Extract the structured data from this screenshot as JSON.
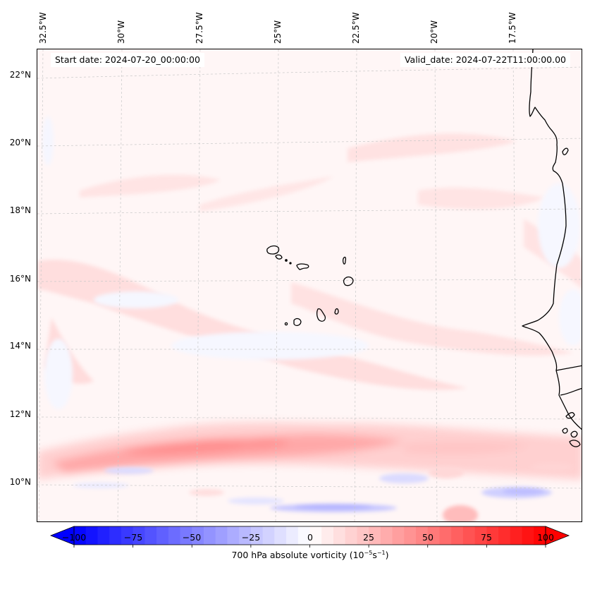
{
  "figure": {
    "start_date": "Start date: 2024-07-20_00:00:00",
    "valid_date": "Valid_date: 2024-07-22T11:00:00.00",
    "lon_labels": [
      "32.5°W",
      "30°W",
      "27.5°W",
      "25°W",
      "22.5°W",
      "20°W",
      "17.5°W"
    ],
    "lat_labels": [
      "22°N",
      "20°N",
      "18°N",
      "16°N",
      "14°N",
      "12°N",
      "10°N"
    ],
    "colorbar": {
      "ticks": [
        "−100",
        "−75",
        "−50",
        "−25",
        "0",
        "25",
        "50",
        "75",
        "100"
      ],
      "label_prefix": "700 hPa absolute vorticity (10",
      "label_exp1": "−5",
      "label_mid": "s",
      "label_exp2": "−1",
      "label_suffix": ")",
      "min": -100,
      "max": 100,
      "step": 5,
      "extend": "both",
      "colormap": "bwr",
      "color_low": "#0000ff",
      "color_mid": "#ffffff",
      "color_high": "#ff0000"
    },
    "features": {
      "vorticity_band": "Positive vorticity maximum along ~10.5–11°N (≈ +50 to +60)",
      "negative_areas": "Weak negative vorticity pockets near 9–10°N (≈ −25 to −35)"
    },
    "map": {
      "lon_range": [
        "33°W",
        "16°W"
      ],
      "lat_range": [
        "9°N",
        "22.8°N"
      ],
      "coastline_color": "#000000",
      "gridline_color": "#b0b0b0"
    }
  }
}
